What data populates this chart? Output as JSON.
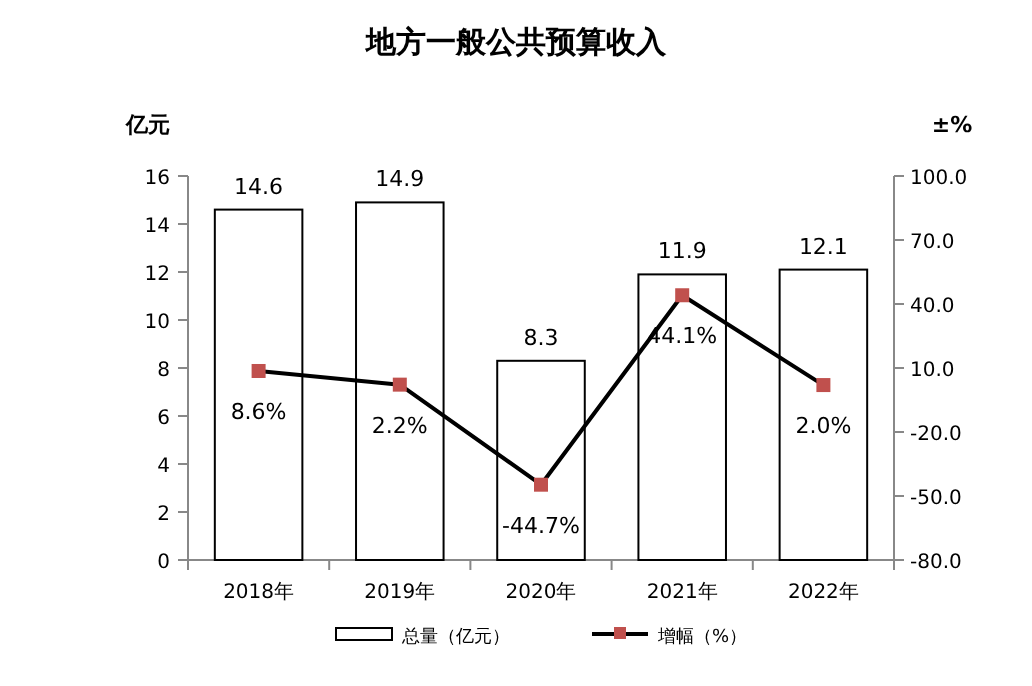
{
  "chart_data": {
    "type": "bar",
    "title": "地方一般公共预算收入",
    "ylabel": "亿元",
    "y2label": "±%",
    "categories": [
      "2018年",
      "2019年",
      "2020年",
      "2021年",
      "2022年"
    ],
    "series": [
      {
        "name": "总量（亿元）",
        "color": "#ffffff",
        "values": [
          14.6,
          14.9,
          8.3,
          11.9,
          12.1
        ],
        "value_labels": [
          "14.6",
          "14.9",
          "8.3",
          "11.9",
          "12.1"
        ]
      },
      {
        "name": "增幅（%）",
        "type": "line",
        "axis": "y2",
        "color": "#c0504d",
        "marker": "square",
        "values": [
          8.6,
          2.2,
          -44.7,
          44.1,
          2.0
        ],
        "value_labels": [
          "8.6%",
          "2.2%",
          "-44.7%",
          "44.1%",
          "2.0%"
        ]
      }
    ],
    "ylim": [
      0,
      16
    ],
    "yticks": [
      0,
      2,
      4,
      6,
      8,
      10,
      12,
      14,
      16
    ],
    "y2lim": [
      -80,
      100
    ],
    "y2ticks": [
      {
        "value": -80,
        "label": "-80.0"
      },
      {
        "value": -50,
        "label": "-50.0"
      },
      {
        "value": -20,
        "label": "-20.0"
      },
      {
        "value": 10,
        "label": "10.0"
      },
      {
        "value": 40,
        "label": "40.0"
      },
      {
        "value": 70,
        "label": "70.0"
      },
      {
        "value": 100,
        "label": "100.0"
      }
    ],
    "grid": false,
    "legend": "bottom"
  }
}
